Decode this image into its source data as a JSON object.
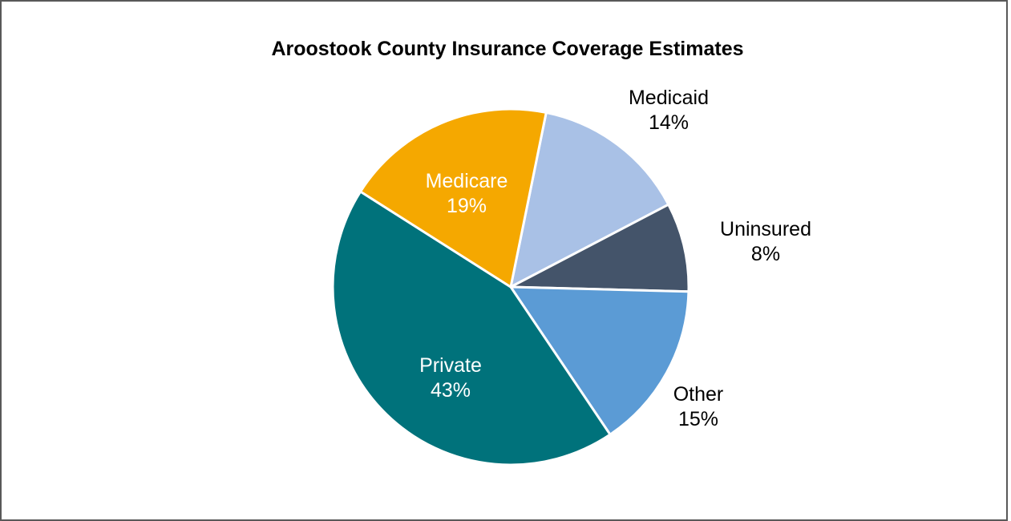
{
  "chart_data": {
    "type": "pie",
    "title": "Aroostook County Insurance Coverage Estimates",
    "slices": [
      {
        "name": "Medicaid",
        "value": 14,
        "pct_label": "14%",
        "color": "#A9C1E6",
        "label_color": "#000000",
        "label_outside": true
      },
      {
        "name": "Uninsured",
        "value": 8,
        "pct_label": "8%",
        "color": "#44546A",
        "label_color": "#000000",
        "label_outside": true
      },
      {
        "name": "Other",
        "value": 15,
        "pct_label": "15%",
        "color": "#5B9BD5",
        "label_color": "#000000",
        "label_outside": true
      },
      {
        "name": "Private",
        "value": 43,
        "pct_label": "43%",
        "color": "#00727B",
        "label_color": "#FFFFFF",
        "label_outside": false
      },
      {
        "name": "Medicare",
        "value": 19,
        "pct_label": "19%",
        "color": "#F5A800",
        "label_color": "#FFFFFF",
        "label_outside": false
      }
    ],
    "start_angle_deg": 11.5,
    "direction": "clockwise",
    "legend": "none"
  }
}
